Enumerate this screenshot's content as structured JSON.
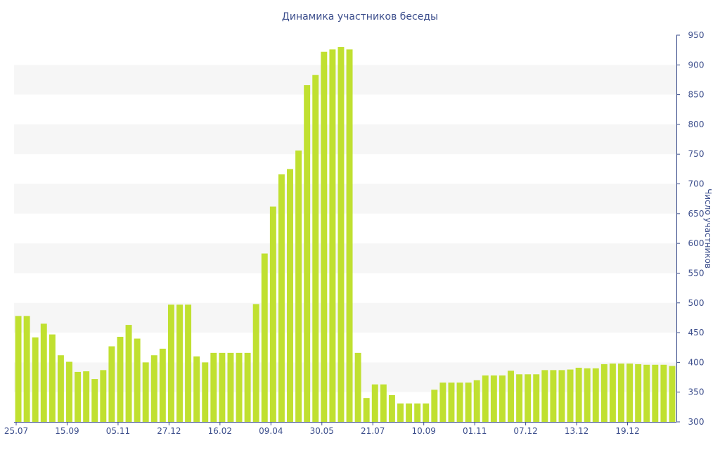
{
  "chart_data": {
    "type": "bar",
    "title": "Динамика участников беседы",
    "xlabel": "",
    "ylabel": "Число участников",
    "y_axis_side": "right",
    "ylim": [
      300,
      950
    ],
    "yticks": [
      300,
      350,
      400,
      450,
      500,
      550,
      600,
      650,
      700,
      750,
      800,
      850,
      900,
      950
    ],
    "xtick_labels": [
      "25.07",
      "15.09",
      "05.11",
      "27.12",
      "16.02",
      "09.04",
      "30.05",
      "21.07",
      "10.09",
      "01.11",
      "07.12",
      "13.12",
      "19.12"
    ],
    "grid": "horizontal alternating bands",
    "legend": "none",
    "colors": {
      "bar": "#c0e030",
      "band": "#f6f6f6",
      "axis": "#3c4e8c"
    },
    "series": [
      {
        "values": [
          478,
          478,
          442,
          465,
          447,
          412,
          401,
          384,
          385,
          372,
          387,
          427,
          443,
          463,
          440,
          400,
          412,
          423,
          497,
          497,
          497,
          410,
          400,
          416,
          416,
          416,
          416,
          416,
          498,
          583,
          662,
          716,
          725,
          756,
          866,
          883,
          922,
          926,
          930,
          926,
          416,
          340,
          363,
          363,
          345,
          331,
          331,
          331,
          331,
          354,
          366,
          366,
          366,
          366,
          370,
          378,
          378,
          378,
          386,
          380,
          380,
          380,
          387,
          387,
          387,
          388,
          391,
          390,
          390,
          397,
          398,
          398,
          398,
          397,
          396,
          396,
          396,
          394
        ]
      }
    ]
  }
}
